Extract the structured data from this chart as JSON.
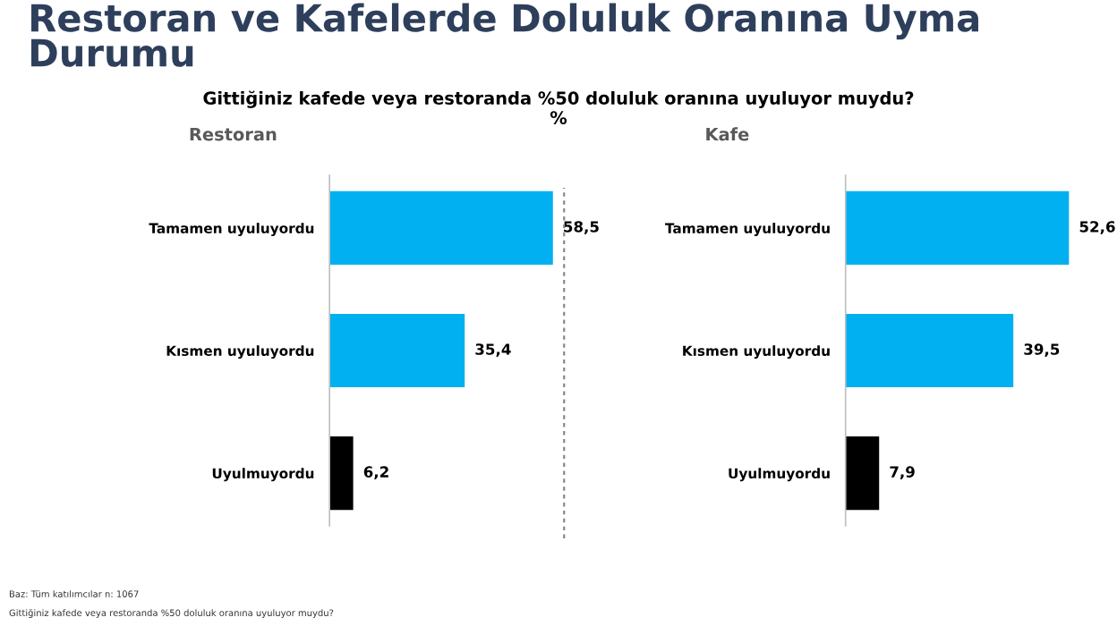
{
  "chart_data": [
    {
      "type": "other",
      "title": "Restoran ve Kafelerde Doluluk Oranına Uyma\nDurumu",
      "subtitle": "Gittiğiniz kafede veya restoranda %50 doluluk oranına uyuluyor muydu?\n%",
      "annotations": [
        "Baz: Tüm katılımcılar n: 1067",
        "Gittiğiniz kafede veya restoranda %50 doluluk oranına uyuluyor muydu?"
      ]
    },
    {
      "type": "bar",
      "orientation": "horizontal",
      "title": "Restoran",
      "categories": [
        "Tamamen uyuluyordu",
        "Kısmen uyuluyordu",
        "Uyulmuyordu"
      ],
      "values": [
        58.5,
        35.4,
        6.2
      ],
      "value_labels": [
        "58,5",
        "35,4",
        "6,2"
      ],
      "colors": [
        "#00b0f0",
        "#00b0f0",
        "#000000"
      ],
      "tick_labels": "y",
      "grid": false,
      "legend": false
    },
    {
      "type": "bar",
      "orientation": "horizontal",
      "title": "Kafe",
      "categories": [
        "Tamamen uyuluyordu",
        "Kısmen uyuluyordu",
        "Uyulmuyordu"
      ],
      "values": [
        52.6,
        39.5,
        7.9
      ],
      "value_labels": [
        "52,6",
        "39,5",
        "7,9"
      ],
      "colors": [
        "#00b0f0",
        "#00b0f0",
        "#000000"
      ],
      "tick_labels": "y",
      "grid": false,
      "legend": false
    }
  ]
}
